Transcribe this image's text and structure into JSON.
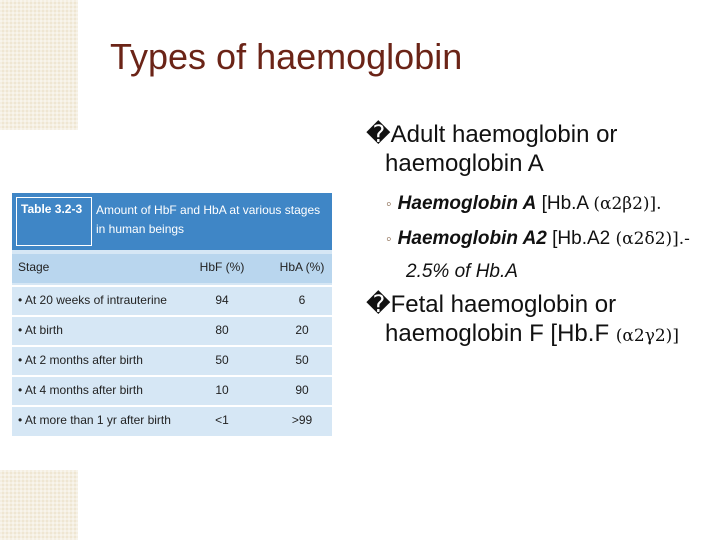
{
  "header": {
    "title": "Types of haemoglobin"
  },
  "bullets": [
    {
      "text": "�Adult haemoglobin or haemoglobin A",
      "sub": [
        {
          "bold": "Haemoglobin A",
          "text": " [Hb.A ",
          "formula": "(α2β2)].",
          "italic": ""
        },
        {
          "bold": "Haemoglobin A2",
          "text": " [Hb.A2 ",
          "formula": "(α2δ2)].- ",
          "italic": "2.5% of Hb.A"
        }
      ]
    },
    {
      "text": "�Fetal haemoglobin or haemoglobin F   [Hb.F ",
      "formula": "(α2γ2)]",
      "sub": []
    }
  ],
  "table": {
    "number": "Table 3.2-3",
    "caption": "Amount of HbF and HbA at various stages in human beings",
    "columns": [
      "Stage",
      "HbF (%)",
      "HbA (%)"
    ],
    "rows": [
      [
        "•  At 20 weeks of intrauterine",
        "94",
        "6"
      ],
      [
        "•  At birth",
        "80",
        "20"
      ],
      [
        "•  At 2 months after birth",
        "50",
        "50"
      ],
      [
        "•  At 4 months after birth",
        "10",
        "90"
      ],
      [
        "•  At more than 1 yr after birth",
        "<1",
        ">99"
      ]
    ]
  }
}
